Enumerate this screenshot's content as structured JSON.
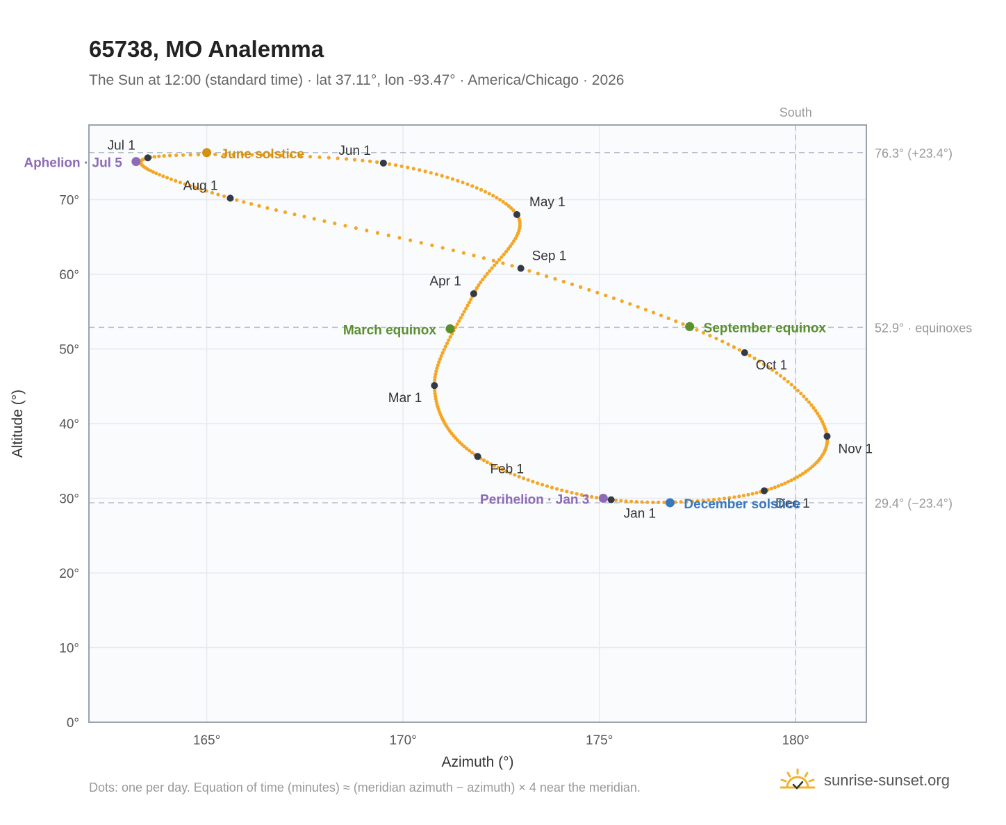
{
  "title": "65738, MO Analemma",
  "subtitle": "The Sun at 12:00 (standard time) · lat 37.11°, lon -93.47° · America/Chicago · 2026",
  "footnote": "Dots: one per day. Equation of time (minutes) ≈ (meridian azimuth − azimuth) × 4 near the meridian.",
  "brand": "sunrise-sunset.org",
  "colors": {
    "curve": "#f5a623",
    "month_dot": "#333a45",
    "solstice": "#d4900e",
    "equinox": "#5a8f2e",
    "apsis": "#8e6bb5",
    "december": "#3a78bd",
    "grid": "#e6e9ee",
    "frame": "#9aa3ad",
    "plot_bg": "#f9fbfd"
  },
  "chart_data": {
    "type": "scatter",
    "xlabel": "Azimuth (°)",
    "ylabel": "Altitude (°)",
    "xlim": [
      162,
      181.8
    ],
    "ylim": [
      0,
      80
    ],
    "xticks": [
      {
        "value": 165,
        "label": "165°"
      },
      {
        "value": 170,
        "label": "170°"
      },
      {
        "value": 175,
        "label": "175°"
      },
      {
        "value": 180,
        "label": "180°"
      }
    ],
    "yticks": [
      {
        "value": 0,
        "label": "0°"
      },
      {
        "value": 10,
        "label": "10°"
      },
      {
        "value": 20,
        "label": "20°"
      },
      {
        "value": 30,
        "label": "30°"
      },
      {
        "value": 40,
        "label": "40°"
      },
      {
        "value": 50,
        "label": "50°"
      },
      {
        "value": 60,
        "label": "60°"
      },
      {
        "value": 70,
        "label": "70°"
      }
    ],
    "reference_lines": {
      "south": {
        "azimuth": 180,
        "label": "South"
      },
      "horizontal": [
        {
          "altitude": 76.3,
          "label": "76.3° (+23.4°)"
        },
        {
          "altitude": 52.9,
          "label": "52.9° · equinoxes"
        },
        {
          "altitude": 29.4,
          "label": "29.4° (−23.4°)"
        }
      ]
    },
    "months": [
      {
        "label": "Jan 1",
        "az": 175.3,
        "alt": 29.8
      },
      {
        "label": "Feb 1",
        "az": 171.9,
        "alt": 35.6
      },
      {
        "label": "Mar 1",
        "az": 170.8,
        "alt": 45.1
      },
      {
        "label": "Apr 1",
        "az": 171.8,
        "alt": 57.4
      },
      {
        "label": "May 1",
        "az": 172.9,
        "alt": 68.0
      },
      {
        "label": "Jun 1",
        "az": 169.5,
        "alt": 74.9
      },
      {
        "label": "Jul 1",
        "az": 163.5,
        "alt": 75.6
      },
      {
        "label": "Aug 1",
        "az": 165.6,
        "alt": 70.2
      },
      {
        "label": "Sep 1",
        "az": 173.0,
        "alt": 60.8
      },
      {
        "label": "Oct 1",
        "az": 178.7,
        "alt": 49.5
      },
      {
        "label": "Nov 1",
        "az": 180.8,
        "alt": 38.3
      },
      {
        "label": "Dec 1",
        "az": 179.2,
        "alt": 31.0
      }
    ],
    "events": [
      {
        "label": "June solstice",
        "az": 165.0,
        "alt": 76.3,
        "color_key": "solstice"
      },
      {
        "label": "March equinox",
        "az": 171.2,
        "alt": 52.7,
        "color_key": "equinox"
      },
      {
        "label": "September equinox",
        "az": 177.3,
        "alt": 53.0,
        "color_key": "equinox"
      },
      {
        "label": "Aphelion · Jul 5",
        "az": 163.2,
        "alt": 75.1,
        "color_key": "apsis"
      },
      {
        "label": "Perihelion · Jan 3",
        "az": 175.1,
        "alt": 30.0,
        "color_key": "apsis"
      },
      {
        "label": "December solstice",
        "az": 176.8,
        "alt": 29.4,
        "color_key": "december"
      }
    ]
  }
}
